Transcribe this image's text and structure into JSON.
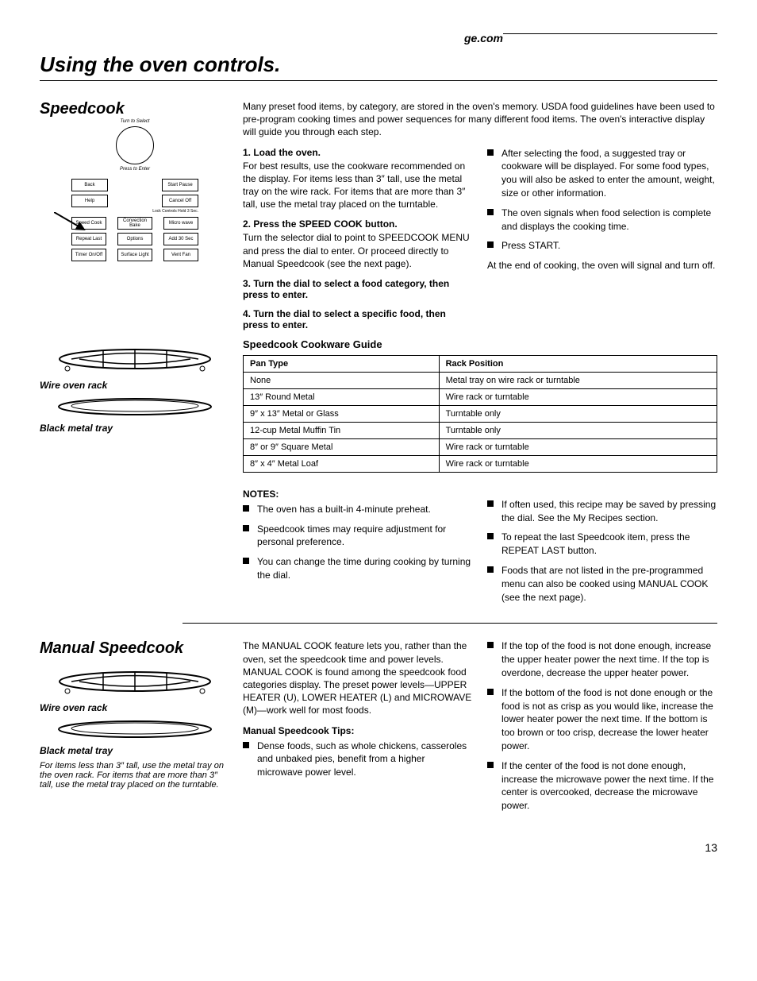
{
  "header": {
    "site": "ge.com",
    "title": "Using the oven controls."
  },
  "panel": {
    "dial_top": "Turn to Select",
    "dial_bot": "Press to Enter",
    "r1_left": "Back",
    "r1_right": "Start\nPause",
    "r2_left": "Help",
    "r2_right": "Cancel\nOff",
    "lockline": "Lock Controls\nHold 3 Sec.",
    "r3_a": "Speed\nCook",
    "r3_b": "Convection\nBake",
    "r3_c": "Micro\nwave",
    "r4_a": "Repeat\nLast",
    "r4_b": "Options",
    "r4_c": "Add\n30 Sec",
    "r5_a": "Timer\nOn/Off",
    "r5_b": "Surface\nLight",
    "r5_c": "Vent Fan"
  },
  "main": {
    "title": "Speedcook",
    "intro": "Many preset food items, by category, are stored in the oven's memory. USDA food guidelines have been used to pre-program cooking times and power sequences for many different food items. The oven's interactive display will guide you through each step.",
    "steps_left": [
      {
        "hd": "1. Load the oven.",
        "body": "For best results, use the cookware recommended on the display. For items less than 3″ tall, use the metal tray on the wire rack. For items that are more than 3″ tall, use the metal tray placed on the turntable."
      },
      {
        "hd": "2. Press the SPEED COOK button.",
        "body": "Turn the selector dial to point to SPEEDCOOK MENU and press the dial to enter. Or proceed directly to Manual Speedcook (see the next page)."
      },
      {
        "hd": "3. Turn the dial to select a food category, then press to enter.",
        "body": ""
      },
      {
        "hd": "4. Turn the dial to select a specific food, then press to enter.",
        "body": ""
      }
    ],
    "steps_right": [
      "After selecting the food, a suggested tray or cookware will be displayed. For some food types, you will also be asked to enter the amount, weight, size or other information.",
      "The oven signals when food selection is complete and displays the cooking time.",
      "Press START.",
      "At the end of cooking, the oven will signal and turn off."
    ]
  },
  "rack_label": "Wire oven rack",
  "tray_label": "Black metal tray",
  "guide": {
    "title": "Speedcook Cookware Guide",
    "table": {
      "columns": [
        "Pan Type",
        "Rack Position"
      ],
      "rows": [
        [
          "None",
          "Metal tray on wire rack or turntable"
        ],
        [
          "13″ Round Metal",
          "Wire rack or turntable"
        ],
        [
          "9″ x 13″ Metal or Glass",
          "Turntable only"
        ],
        [
          "12-cup Metal Muffin Tin",
          "Turntable only"
        ],
        [
          "8″ or 9″ Square Metal",
          "Wire rack or turntable"
        ],
        [
          "8″ x 4″ Metal Loaf",
          "Wire rack or turntable"
        ]
      ]
    },
    "notes_hd": "NOTES:",
    "notes_left": [
      "The oven has a built-in 4-minute preheat.",
      "Speedcook times may require adjustment for personal preference.",
      "You can change the time during cooking by turning the dial."
    ],
    "notes_right": [
      "If often used, this recipe may be saved by pressing the dial. See the My Recipes section.",
      "To repeat the last Speedcook item, press the REPEAT LAST button.",
      "Foods that are not listed in the pre-programmed menu can also be cooked using MANUAL COOK (see the next page)."
    ]
  },
  "manual": {
    "title": "Manual Speedcook",
    "intro_left": "The MANUAL COOK feature lets you, rather than the oven, set the speedcook time and power levels. MANUAL COOK is found among the speedcook food categories display. The preset power levels—UPPER HEATER (U), LOWER HEATER (L) and MICROWAVE (M)—work well for most foods.",
    "intro_right_list": [
      "If the top of the food is not done enough, increase the upper heater power the next time. If the top is overdone, decrease the upper heater power.",
      "If the bottom of the food is not done enough or the food is not as crisp as you would like, increase the lower heater power the next time. If the bottom is too brown or too crisp, decrease the lower heater power.",
      "If the center of the food is not done enough, increase the microwave power the next time. If the center is overcooked, decrease the microwave power."
    ],
    "rack_label": "Wire oven rack",
    "tray_label": "Black metal tray",
    "left_note": "For items less than 3″ tall, use the metal tray on the oven rack. For items that are more than 3″ tall, use the metal tray placed on the turntable.",
    "tips_hd": "Manual Speedcook Tips:",
    "tips_left": [
      "Dense foods, such as whole chickens, casseroles and unbaked pies, benefit from a higher microwave power level."
    ]
  },
  "pagenum": "13"
}
